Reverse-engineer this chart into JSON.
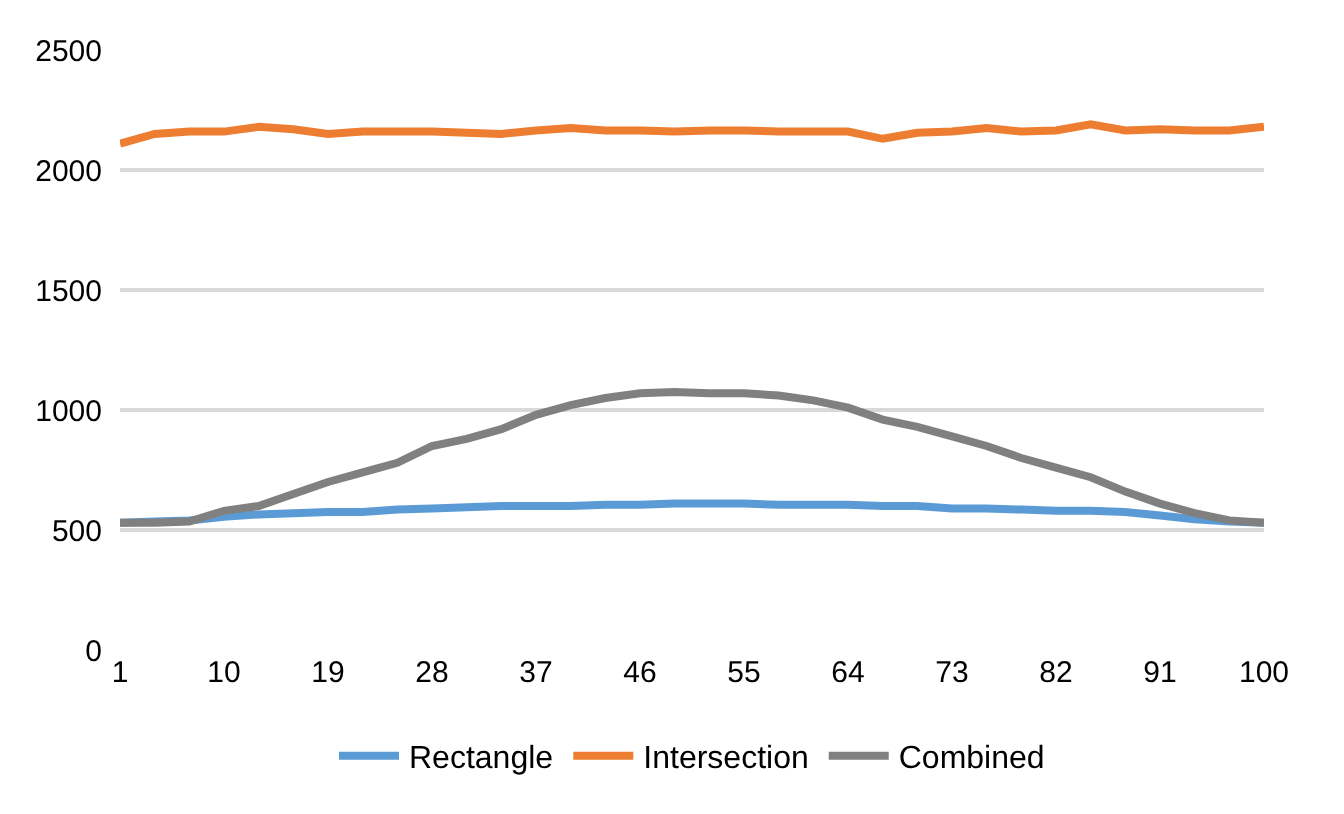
{
  "chart_data": {
    "type": "line",
    "x": [
      1,
      4,
      7,
      10,
      13,
      16,
      19,
      22,
      25,
      28,
      31,
      34,
      37,
      40,
      43,
      46,
      49,
      52,
      55,
      58,
      61,
      64,
      67,
      70,
      73,
      76,
      79,
      82,
      85,
      88,
      91,
      94,
      97,
      100
    ],
    "series": [
      {
        "name": "Rectangle",
        "color": "#5b9bd5",
        "values": [
          530,
          535,
          540,
          555,
          565,
          570,
          575,
          575,
          585,
          590,
          595,
          600,
          600,
          600,
          605,
          605,
          610,
          610,
          610,
          605,
          605,
          605,
          600,
          600,
          590,
          590,
          585,
          580,
          580,
          575,
          560,
          545,
          535,
          530
        ]
      },
      {
        "name": "Intersection",
        "color": "#ed7d31",
        "values": [
          2110,
          2150,
          2160,
          2160,
          2180,
          2170,
          2150,
          2160,
          2160,
          2160,
          2155,
          2150,
          2165,
          2175,
          2165,
          2165,
          2160,
          2165,
          2165,
          2160,
          2160,
          2160,
          2130,
          2155,
          2160,
          2175,
          2160,
          2165,
          2190,
          2165,
          2170,
          2165,
          2165,
          2180
        ]
      },
      {
        "name": "Combined",
        "color": "#808080",
        "values": [
          530,
          530,
          535,
          580,
          600,
          650,
          700,
          740,
          780,
          850,
          880,
          920,
          980,
          1020,
          1050,
          1070,
          1075,
          1070,
          1070,
          1060,
          1040,
          1010,
          960,
          930,
          890,
          850,
          800,
          760,
          720,
          660,
          610,
          570,
          540,
          530
        ]
      }
    ],
    "xlim": [
      1,
      100
    ],
    "xticks": [
      1,
      10,
      19,
      28,
      37,
      46,
      55,
      64,
      73,
      82,
      91,
      100
    ],
    "ylim": [
      0,
      2500
    ],
    "yticks": [
      0,
      500,
      1000,
      1500,
      2000,
      2500
    ],
    "grid": "y",
    "legend": "bottom",
    "marker": "none",
    "line_style": "solid"
  }
}
